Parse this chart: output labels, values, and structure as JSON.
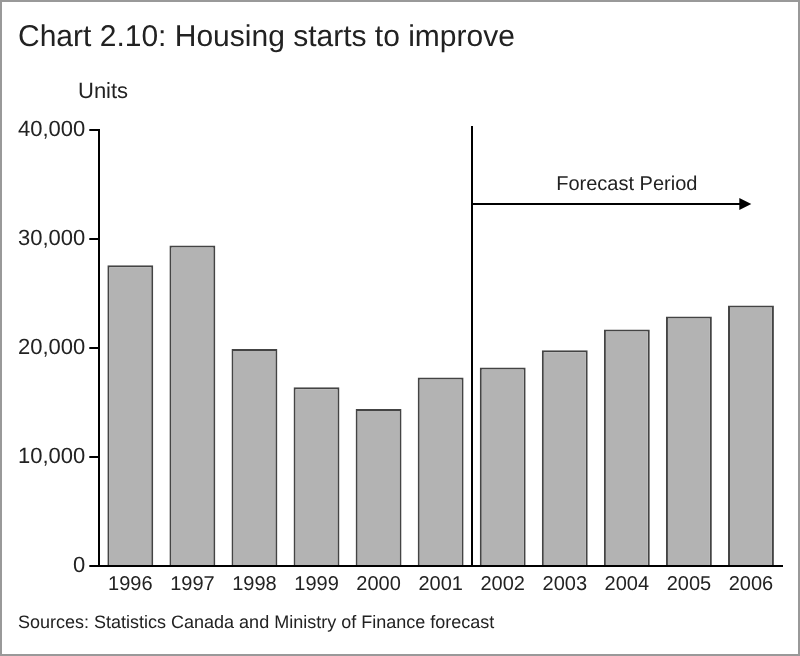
{
  "chart_data": {
    "type": "bar",
    "title": "Chart 2.10: Housing starts to improve",
    "ylabel": "Units",
    "categories": [
      "1996",
      "1997",
      "1998",
      "1999",
      "2000",
      "2001",
      "2002",
      "2003",
      "2004",
      "2005",
      "2006"
    ],
    "values": [
      27600,
      29400,
      19900,
      16400,
      14400,
      17300,
      18200,
      19800,
      21700,
      22900,
      23900
    ],
    "color": "#b3b3b3",
    "ylim": [
      0,
      40000
    ],
    "yticks": [
      0,
      {
        "value": 10000,
        "label": "10,000"
      },
      {
        "value": 20000,
        "label": "20,000"
      },
      {
        "value": 30000,
        "label": "30,000"
      },
      {
        "value": 40000,
        "label": "40,000"
      }
    ],
    "grid": false,
    "legend": false,
    "annotations": [
      "Forecast Period",
      "Sources: Statistics Canada and Ministry of Finance forecast"
    ]
  }
}
